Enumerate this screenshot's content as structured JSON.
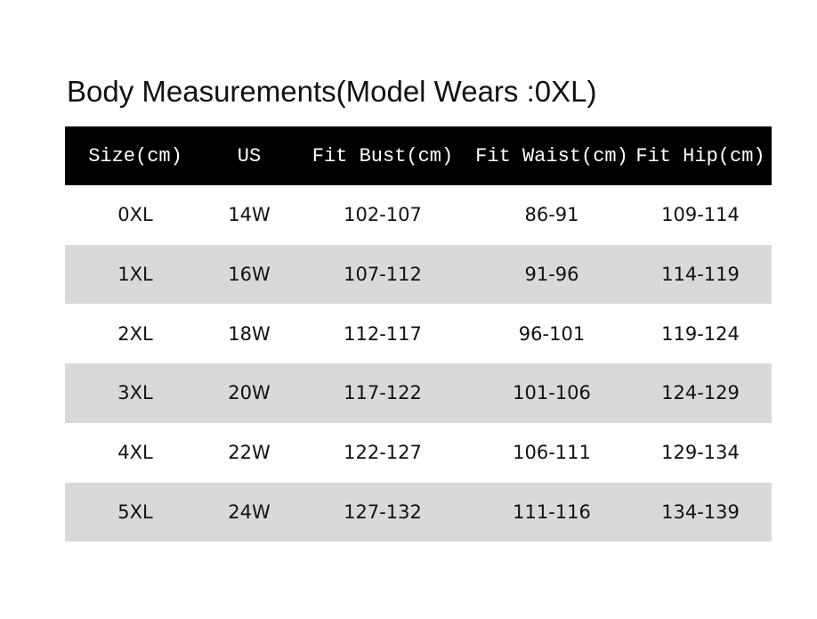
{
  "header": {
    "title": "Body Measurements(Model Wears :0XL)"
  },
  "table": {
    "columns": [
      "Size(cm)",
      "US",
      "Fit Bust(cm)",
      "Fit Waist(cm)",
      "Fit Hip(cm)"
    ],
    "rows": [
      [
        "0XL",
        "14W",
        "102-107",
        "86-91",
        "109-114"
      ],
      [
        "1XL",
        "16W",
        "107-112",
        "91-96",
        "114-119"
      ],
      [
        "2XL",
        "18W",
        "112-117",
        "96-101",
        "119-124"
      ],
      [
        "3XL",
        "20W",
        "117-122",
        "101-106",
        "124-129"
      ],
      [
        "4XL",
        "22W",
        "122-127",
        "106-111",
        "129-134"
      ],
      [
        "5XL",
        "24W",
        "127-132",
        "111-116",
        "134-139"
      ]
    ]
  }
}
